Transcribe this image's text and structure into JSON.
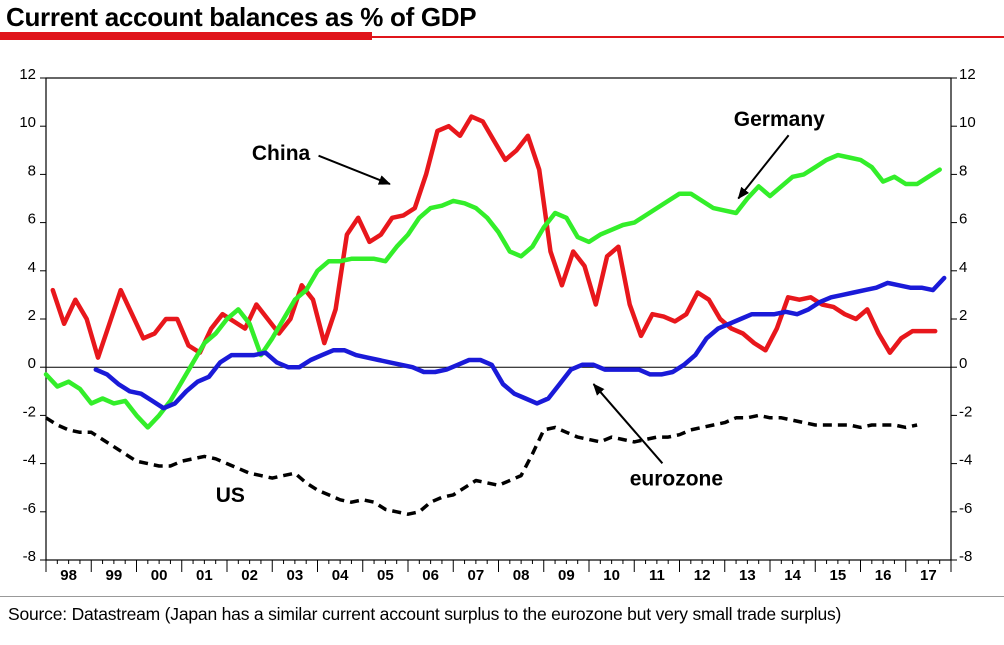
{
  "header": {
    "title": "Current account balances as % of GDP"
  },
  "footer": {
    "source": "Source: Datastream (Japan has a similar current account surplus to the eurozone but very small trade surplus)"
  },
  "chart_data": {
    "type": "line",
    "title": "Current account balances as % of GDP",
    "ylim": [
      -8,
      12
    ],
    "yticks": [
      12,
      10,
      8,
      6,
      4,
      2,
      0,
      -2,
      -4,
      -6,
      -8
    ],
    "ytick_labels": [
      "12",
      "10",
      "8",
      "6",
      "4",
      "2",
      "0",
      "-2",
      "-4",
      "-6",
      "-8"
    ],
    "xlim": [
      1998.0,
      2018.0
    ],
    "x_tick_labels": [
      "98",
      "99",
      "00",
      "01",
      "02",
      "03",
      "04",
      "05",
      "06",
      "07",
      "08",
      "09",
      "10",
      "11",
      "12",
      "13",
      "14",
      "15",
      "16",
      "17"
    ],
    "colors": {
      "China": "#e8171c",
      "Germany": "#33ee2a",
      "eurozone": "#1a1ad8",
      "US": "#000000",
      "accent": "#e0151b"
    },
    "series": [
      {
        "name": "China",
        "style": "solid",
        "x": [
          1998.15,
          1998.4,
          1998.65,
          1998.9,
          1999.15,
          1999.4,
          1999.65,
          1999.9,
          2000.15,
          2000.4,
          2000.65,
          2000.9,
          2001.15,
          2001.4,
          2001.65,
          2001.9,
          2002.15,
          2002.4,
          2002.65,
          2002.9,
          2003.15,
          2003.4,
          2003.65,
          2003.9,
          2004.15,
          2004.4,
          2004.65,
          2004.9,
          2005.15,
          2005.4,
          2005.65,
          2005.9,
          2006.15,
          2006.4,
          2006.65,
          2006.9,
          2007.15,
          2007.4,
          2007.65,
          2007.9,
          2008.15,
          2008.4,
          2008.65,
          2008.9,
          2009.15,
          2009.4,
          2009.65,
          2009.9,
          2010.15,
          2010.4,
          2010.65,
          2010.9,
          2011.15,
          2011.4,
          2011.65,
          2011.9,
          2012.15,
          2012.4,
          2012.65,
          2012.9,
          2013.15,
          2013.4,
          2013.65,
          2013.9,
          2014.15,
          2014.4,
          2014.65,
          2014.9,
          2015.15,
          2015.4,
          2015.65,
          2015.9,
          2016.15,
          2016.4,
          2016.65,
          2016.9,
          2017.15,
          2017.4,
          2017.65
        ],
        "values": [
          3.2,
          1.8,
          2.8,
          2.0,
          0.4,
          1.8,
          3.2,
          2.2,
          1.2,
          1.4,
          2.0,
          2.0,
          0.9,
          0.6,
          1.6,
          2.2,
          1.9,
          1.6,
          2.6,
          2.0,
          1.4,
          2.0,
          3.4,
          2.8,
          1.0,
          2.4,
          5.5,
          6.2,
          5.2,
          5.5,
          6.2,
          6.3,
          6.6,
          8.0,
          9.8,
          10.0,
          9.6,
          10.4,
          10.2,
          9.4,
          8.6,
          9.0,
          9.6,
          8.2,
          4.8,
          3.4,
          4.8,
          4.2,
          2.6,
          4.6,
          5.0,
          2.6,
          1.3,
          2.2,
          2.1,
          1.9,
          2.2,
          3.1,
          2.8,
          2.0,
          1.6,
          1.4,
          1.0,
          0.7,
          1.6,
          2.9,
          2.8,
          2.9,
          2.6,
          2.5,
          2.2,
          2.0,
          2.4,
          1.4,
          0.6,
          1.2,
          1.5,
          1.5,
          1.5
        ]
      },
      {
        "name": "Germany",
        "style": "solid",
        "x": [
          1998.0,
          1998.25,
          1998.5,
          1998.75,
          1999.0,
          1999.25,
          1999.5,
          1999.75,
          2000.0,
          2000.25,
          2000.5,
          2000.75,
          2001.0,
          2001.25,
          2001.5,
          2001.75,
          2002.0,
          2002.25,
          2002.5,
          2002.75,
          2003.0,
          2003.25,
          2003.5,
          2003.75,
          2004.0,
          2004.25,
          2004.5,
          2004.75,
          2005.0,
          2005.25,
          2005.5,
          2005.75,
          2006.0,
          2006.25,
          2006.5,
          2006.75,
          2007.0,
          2007.25,
          2007.5,
          2007.75,
          2008.0,
          2008.25,
          2008.5,
          2008.75,
          2009.0,
          2009.25,
          2009.5,
          2009.75,
          2010.0,
          2010.25,
          2010.5,
          2010.75,
          2011.0,
          2011.25,
          2011.5,
          2011.75,
          2012.0,
          2012.25,
          2012.5,
          2012.75,
          2013.0,
          2013.25,
          2013.5,
          2013.75,
          2014.0,
          2014.25,
          2014.5,
          2014.75,
          2015.0,
          2015.25,
          2015.5,
          2015.75,
          2016.0,
          2016.25,
          2016.5,
          2016.75,
          2017.0,
          2017.25,
          2017.5,
          2017.75
        ],
        "values": [
          -0.3,
          -0.8,
          -0.6,
          -0.9,
          -1.5,
          -1.3,
          -1.5,
          -1.4,
          -2.0,
          -2.5,
          -2.0,
          -1.4,
          -0.6,
          0.2,
          1.0,
          1.4,
          2.0,
          2.4,
          1.8,
          0.5,
          1.2,
          2.0,
          2.8,
          3.2,
          4.0,
          4.4,
          4.4,
          4.5,
          4.5,
          4.5,
          4.4,
          5.0,
          5.5,
          6.2,
          6.6,
          6.7,
          6.9,
          6.8,
          6.6,
          6.2,
          5.6,
          4.8,
          4.6,
          5.0,
          5.8,
          6.4,
          6.2,
          5.4,
          5.2,
          5.5,
          5.7,
          5.9,
          6.0,
          6.3,
          6.6,
          6.9,
          7.2,
          7.2,
          6.9,
          6.6,
          6.5,
          6.4,
          7.0,
          7.5,
          7.1,
          7.5,
          7.9,
          8.0,
          8.3,
          8.6,
          8.8,
          8.7,
          8.6,
          8.3,
          7.7,
          7.9,
          7.6,
          7.6,
          7.9,
          8.2
        ]
      },
      {
        "name": "eurozone",
        "style": "solid",
        "x": [
          1999.1,
          1999.35,
          1999.6,
          1999.85,
          2000.1,
          2000.35,
          2000.6,
          2000.85,
          2001.1,
          2001.35,
          2001.6,
          2001.85,
          2002.1,
          2002.35,
          2002.6,
          2002.85,
          2003.1,
          2003.35,
          2003.6,
          2003.85,
          2004.1,
          2004.35,
          2004.6,
          2004.85,
          2005.1,
          2005.35,
          2005.6,
          2005.85,
          2006.1,
          2006.35,
          2006.6,
          2006.85,
          2007.1,
          2007.35,
          2007.6,
          2007.85,
          2008.1,
          2008.35,
          2008.6,
          2008.85,
          2009.1,
          2009.35,
          2009.6,
          2009.85,
          2010.1,
          2010.35,
          2010.6,
          2010.85,
          2011.1,
          2011.35,
          2011.6,
          2011.85,
          2012.1,
          2012.35,
          2012.6,
          2012.85,
          2013.1,
          2013.35,
          2013.6,
          2013.85,
          2014.1,
          2014.35,
          2014.6,
          2014.85,
          2015.1,
          2015.35,
          2015.6,
          2015.85,
          2016.1,
          2016.35,
          2016.6,
          2016.85,
          2017.1,
          2017.35,
          2017.6,
          2017.85
        ],
        "values": [
          -0.1,
          -0.3,
          -0.7,
          -1.0,
          -1.1,
          -1.4,
          -1.7,
          -1.5,
          -1.0,
          -0.6,
          -0.4,
          0.2,
          0.5,
          0.5,
          0.5,
          0.6,
          0.2,
          0.0,
          0.0,
          0.3,
          0.5,
          0.7,
          0.7,
          0.5,
          0.4,
          0.3,
          0.2,
          0.1,
          0.0,
          -0.2,
          -0.2,
          -0.1,
          0.1,
          0.3,
          0.3,
          0.1,
          -0.7,
          -1.1,
          -1.3,
          -1.5,
          -1.3,
          -0.7,
          -0.1,
          0.1,
          0.1,
          -0.1,
          -0.1,
          -0.1,
          -0.1,
          -0.3,
          -0.3,
          -0.2,
          0.1,
          0.5,
          1.2,
          1.6,
          1.8,
          2.0,
          2.2,
          2.2,
          2.2,
          2.3,
          2.2,
          2.4,
          2.7,
          2.9,
          3.0,
          3.1,
          3.2,
          3.3,
          3.5,
          3.4,
          3.3,
          3.3,
          3.2,
          3.7
        ]
      },
      {
        "name": "US",
        "style": "dashed",
        "x": [
          1998.0,
          1998.25,
          1998.5,
          1998.75,
          1999.0,
          1999.25,
          1999.5,
          1999.75,
          2000.0,
          2000.25,
          2000.5,
          2000.75,
          2001.0,
          2001.25,
          2001.5,
          2001.75,
          2002.0,
          2002.25,
          2002.5,
          2002.75,
          2003.0,
          2003.25,
          2003.5,
          2003.75,
          2004.0,
          2004.25,
          2004.5,
          2004.75,
          2005.0,
          2005.25,
          2005.5,
          2005.75,
          2006.0,
          2006.25,
          2006.5,
          2006.75,
          2007.0,
          2007.25,
          2007.5,
          2007.75,
          2008.0,
          2008.25,
          2008.5,
          2008.75,
          2009.0,
          2009.25,
          2009.5,
          2009.75,
          2010.0,
          2010.25,
          2010.5,
          2010.75,
          2011.0,
          2011.25,
          2011.5,
          2011.75,
          2012.0,
          2012.25,
          2012.5,
          2012.75,
          2013.0,
          2013.25,
          2013.5,
          2013.75,
          2014.0,
          2014.25,
          2014.5,
          2014.75,
          2015.0,
          2015.25,
          2015.5,
          2015.75,
          2016.0,
          2016.25,
          2016.5,
          2016.75,
          2017.0,
          2017.25
        ],
        "values": [
          -2.1,
          -2.4,
          -2.6,
          -2.7,
          -2.7,
          -3.0,
          -3.3,
          -3.6,
          -3.9,
          -4.0,
          -4.1,
          -4.1,
          -3.9,
          -3.8,
          -3.7,
          -3.8,
          -4.0,
          -4.2,
          -4.4,
          -4.5,
          -4.6,
          -4.5,
          -4.4,
          -4.8,
          -5.1,
          -5.3,
          -5.5,
          -5.6,
          -5.5,
          -5.6,
          -5.9,
          -6.0,
          -6.1,
          -6.0,
          -5.6,
          -5.4,
          -5.3,
          -5.0,
          -4.7,
          -4.8,
          -4.9,
          -4.7,
          -4.5,
          -3.6,
          -2.6,
          -2.5,
          -2.7,
          -2.9,
          -3.0,
          -3.1,
          -2.9,
          -3.0,
          -3.1,
          -3.0,
          -2.9,
          -2.9,
          -2.8,
          -2.6,
          -2.5,
          -2.4,
          -2.3,
          -2.1,
          -2.1,
          -2.0,
          -2.1,
          -2.1,
          -2.2,
          -2.3,
          -2.4,
          -2.4,
          -2.4,
          -2.4,
          -2.5,
          -2.4,
          -2.4,
          -2.4,
          -2.5,
          -2.4
        ]
      }
    ],
    "annotations": [
      {
        "text": "China",
        "series": "China",
        "label_x": 2002.55,
        "label_y": 8.6,
        "arrow_to_x": 2005.6,
        "arrow_to_y": 7.6
      },
      {
        "text": "Germany",
        "series": "Germany",
        "label_x": 2013.2,
        "label_y": 10.0,
        "arrow_to_x": 2013.3,
        "arrow_to_y": 7.0
      },
      {
        "text": "eurozone",
        "series": "eurozone",
        "label_x": 2010.9,
        "label_y": -4.9,
        "arrow_to_x": 2010.1,
        "arrow_to_y": -0.7
      },
      {
        "text": "US",
        "series": "US",
        "label_x": 2001.75,
        "label_y": -5.6
      }
    ]
  }
}
